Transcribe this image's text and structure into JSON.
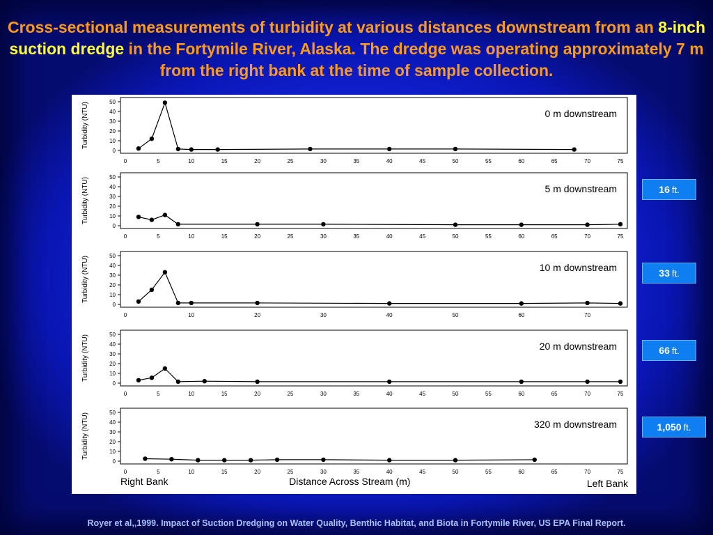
{
  "title": {
    "part1": "Cross-sectional measurements of turbidity at various distances downstream from an ",
    "highlight": "8-inch suction dredge",
    "part2": " in the Fortymile River, Alaska. The dredge was operating approximately 7 m from the right bank at the time of sample collection."
  },
  "side_labels": [
    {
      "value": "16 ft.",
      "number": "16",
      "unit": "ft."
    },
    {
      "value": "33 ft.",
      "number": "33",
      "unit": "ft."
    },
    {
      "value": "66 ft.",
      "number": "66",
      "unit": "ft."
    },
    {
      "value": "1,050 ft.",
      "number": "1,050",
      "unit": "ft."
    }
  ],
  "footer": "Royer et al,,1999.  Impact of Suction Dredging on Water Quality, Benthic Habitat, and Biota in Fortymile River, US EPA Final Report.",
  "colors": {
    "title": "#ff9a1e",
    "title_highlight": "#ffff33",
    "label_box": "#0e7ef0",
    "footer": "#a9c2ff",
    "line": "#000000"
  },
  "chart_data": [
    {
      "type": "line",
      "annotation": "0 m downstream",
      "ylabel": "Turbidity (NTU)",
      "xlim": [
        0,
        75
      ],
      "ylim": [
        0,
        50
      ],
      "xticks": [
        0,
        5,
        10,
        15,
        20,
        25,
        30,
        35,
        40,
        45,
        50,
        55,
        60,
        65,
        70,
        75
      ],
      "yticks": [
        0,
        10,
        20,
        30,
        40,
        50
      ],
      "x": [
        2,
        4,
        6,
        8,
        10,
        14,
        28,
        40,
        50,
        68
      ],
      "y": [
        2,
        12,
        49,
        1.5,
        1,
        1,
        1.5,
        1.5,
        1.5,
        1
      ]
    },
    {
      "type": "line",
      "annotation": "5 m downstream",
      "ylabel": "Turbidity (NTU)",
      "xlim": [
        0,
        75
      ],
      "ylim": [
        0,
        50
      ],
      "xticks": [
        0,
        5,
        10,
        15,
        20,
        25,
        30,
        35,
        40,
        45,
        50,
        55,
        60,
        65,
        70,
        75
      ],
      "yticks": [
        0,
        10,
        20,
        30,
        40,
        50
      ],
      "x": [
        2,
        4,
        6,
        8,
        20,
        30,
        50,
        60,
        70,
        75
      ],
      "y": [
        9,
        6,
        11,
        1.5,
        1.5,
        1.5,
        1,
        1,
        1,
        1.5
      ]
    },
    {
      "type": "line",
      "annotation": "10 m downstream",
      "ylabel": "Turbidity (NTU)",
      "xlim": [
        0,
        75
      ],
      "ylim": [
        0,
        50
      ],
      "xticks": [
        0,
        10,
        20,
        30,
        40,
        50,
        60,
        70
      ],
      "yticks": [
        0,
        10,
        20,
        30,
        40,
        50
      ],
      "x": [
        2,
        4,
        6,
        8,
        10,
        20,
        40,
        60,
        70,
        75
      ],
      "y": [
        3,
        15,
        33,
        1.5,
        1.5,
        1.5,
        1,
        1,
        1.5,
        1
      ]
    },
    {
      "type": "line",
      "annotation": "20 m downstream",
      "ylabel": "Turbidity (NTU)",
      "xlim": [
        0,
        75
      ],
      "ylim": [
        0,
        50
      ],
      "xticks": [
        0,
        5,
        10,
        15,
        20,
        25,
        30,
        35,
        40,
        45,
        50,
        55,
        60,
        65,
        70,
        75
      ],
      "yticks": [
        0,
        10,
        20,
        30,
        40,
        50
      ],
      "x": [
        2,
        4,
        6,
        8,
        12,
        20,
        40,
        60,
        70,
        75
      ],
      "y": [
        3,
        5.5,
        15,
        1.5,
        2,
        1.5,
        1.5,
        1.5,
        1.5,
        1.5
      ]
    },
    {
      "type": "line",
      "annotation": "320 m downstream",
      "ylabel": "Turbidity (NTU)",
      "xlabel": "Distance Across Stream (m)",
      "left_caption": "Right Bank",
      "right_caption": "Left Bank",
      "xlim": [
        0,
        75
      ],
      "ylim": [
        0,
        50
      ],
      "xticks": [
        0,
        5,
        10,
        15,
        20,
        25,
        30,
        35,
        40,
        45,
        50,
        55,
        60,
        65,
        70,
        75
      ],
      "yticks": [
        0,
        10,
        20,
        30,
        40,
        50
      ],
      "x": [
        3,
        7,
        11,
        15,
        19,
        23,
        30,
        40,
        50,
        62
      ],
      "y": [
        2.5,
        2,
        1,
        1,
        1,
        1.5,
        1.5,
        1,
        1,
        1.5
      ]
    }
  ]
}
